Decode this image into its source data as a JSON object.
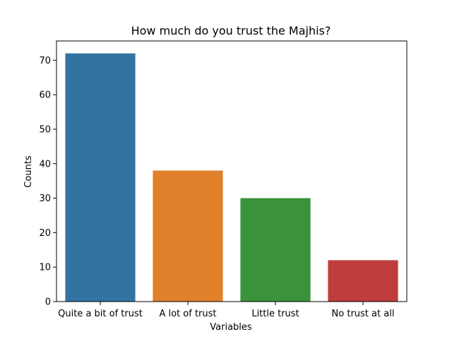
{
  "chart_data": {
    "type": "bar",
    "title": "How much do you trust the Majhis?",
    "xlabel": "Variables",
    "ylabel": "Counts",
    "categories": [
      "Quite a bit of trust",
      "A lot of trust",
      "Little trust",
      "No trust at all"
    ],
    "values": [
      72,
      38,
      30,
      12
    ],
    "colors": [
      "#3274a1",
      "#e1812c",
      "#3a923a",
      "#c03d3e"
    ],
    "ylim": [
      0,
      75.6
    ],
    "yticks": [
      0,
      10,
      20,
      30,
      40,
      50,
      60,
      70
    ],
    "grid": false,
    "legend": "none"
  }
}
